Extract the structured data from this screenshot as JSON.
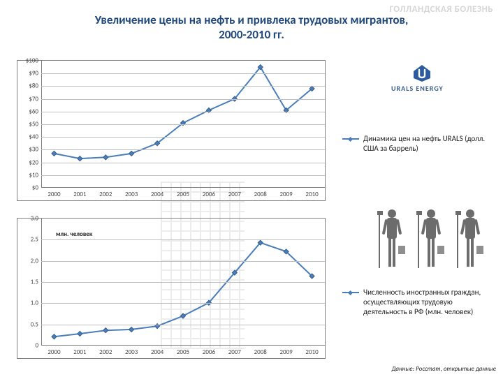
{
  "header_ghost": "ГОЛЛАНДСКАЯ БОЛЕЗНЬ",
  "title_line1": "Увеличение цены на нефть и привлека трудовых мигрантов,",
  "title_line2": "2000-2010 гг.",
  "chart1": {
    "type": "line",
    "x": [
      "2000",
      "2001",
      "2002",
      "2003",
      "2004",
      "2005",
      "2006",
      "2007",
      "2008",
      "2009",
      "2010"
    ],
    "y": [
      27,
      23,
      24,
      27,
      35,
      51,
      61,
      70,
      95,
      61,
      78
    ],
    "ylim": [
      0,
      100
    ],
    "ytick_step": 10,
    "ytick_prefix": "$",
    "legend": "Динамика цен на нефть URALS (долл. США за баррель)",
    "series_color": "#4a7ebb",
    "grid_color": "#bfbfbf",
    "label_fontsize": 9
  },
  "chart2": {
    "type": "line",
    "x": [
      "2000",
      "2001",
      "2002",
      "2003",
      "2004",
      "2005",
      "2006",
      "2007",
      "2008",
      "2009",
      "2010"
    ],
    "y": [
      0.21,
      0.28,
      0.36,
      0.38,
      0.46,
      0.7,
      1.01,
      1.72,
      2.43,
      2.22,
      1.64
    ],
    "ylim": [
      0,
      3
    ],
    "ytick_step": 0.5,
    "ytick_prefix": "",
    "legend": "Численность иностранных граждан, осуществляющих трудовую деятельность в РФ (млн. человек)",
    "series_color": "#4a7ebb",
    "grid_color": "#bfbfbf",
    "label_fontsize": 9,
    "note": "млн. человек"
  },
  "source": "Данные: Росстат, открытые данные",
  "logo_text": "URALS ENERGY"
}
